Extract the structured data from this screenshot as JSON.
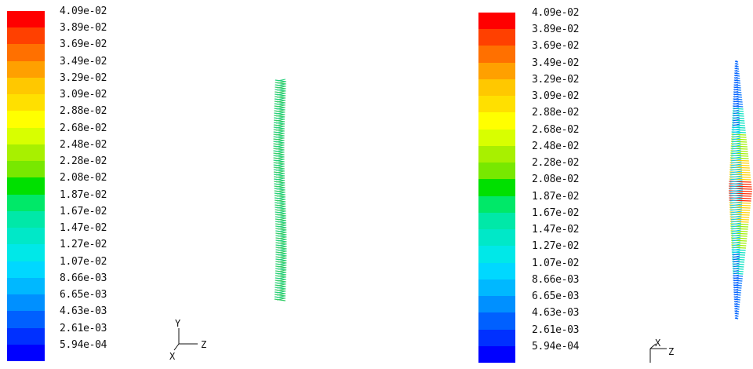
{
  "panels": [
    {
      "colorbar": {
        "labels": [
          "4.09e-02",
          "3.89e-02",
          "3.69e-02",
          "3.49e-02",
          "3.29e-02",
          "3.09e-02",
          "2.88e-02",
          "2.68e-02",
          "2.48e-02",
          "2.28e-02",
          "2.08e-02",
          "1.87e-02",
          "1.67e-02",
          "1.47e-02",
          "1.27e-02",
          "1.07e-02",
          "8.66e-03",
          "6.65e-03",
          "4.63e-03",
          "2.61e-03",
          "5.94e-04"
        ],
        "colors": [
          "#ff0000",
          "#ff4000",
          "#ff7000",
          "#ffa000",
          "#ffc800",
          "#ffe000",
          "#ffff00",
          "#d8ff00",
          "#a8f000",
          "#78e800",
          "#00e000",
          "#00e868",
          "#00e8a8",
          "#00e8c8",
          "#00e8e8",
          "#00d8ff",
          "#00b8ff",
          "#0090ff",
          "#0060ff",
          "#0030ff",
          "#0000ff"
        ]
      },
      "axes": {
        "y": "Y",
        "z": "Z",
        "x": "X"
      }
    },
    {
      "colorbar": {
        "labels": [
          "4.09e-02",
          "3.89e-02",
          "3.69e-02",
          "3.49e-02",
          "3.29e-02",
          "3.09e-02",
          "2.88e-02",
          "2.68e-02",
          "2.48e-02",
          "2.28e-02",
          "2.08e-02",
          "1.87e-02",
          "1.67e-02",
          "1.47e-02",
          "1.27e-02",
          "1.07e-02",
          "8.66e-03",
          "6.65e-03",
          "4.63e-03",
          "2.61e-03",
          "5.94e-04"
        ],
        "colors": [
          "#ff0000",
          "#ff4000",
          "#ff7000",
          "#ffa000",
          "#ffc800",
          "#ffe000",
          "#ffff00",
          "#d8ff00",
          "#a8f000",
          "#78e800",
          "#00e000",
          "#00e868",
          "#00e8a8",
          "#00e8c8",
          "#00e8e8",
          "#00d8ff",
          "#00b8ff",
          "#0090ff",
          "#0060ff",
          "#0030ff",
          "#0000ff"
        ]
      },
      "axes": {
        "x": "X",
        "z": "Z"
      }
    }
  ]
}
